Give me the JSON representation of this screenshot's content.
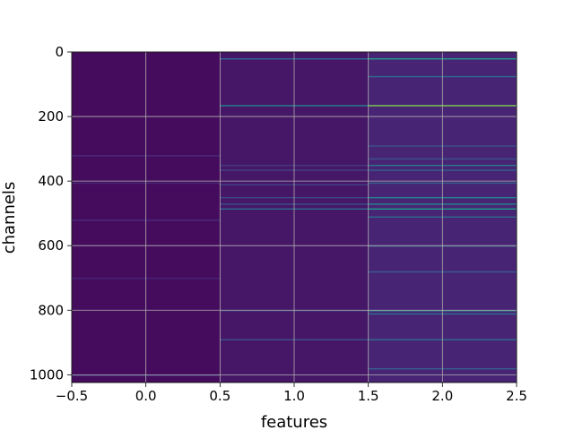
{
  "chart_data": {
    "type": "heatmap",
    "title": "",
    "xlabel": "features",
    "ylabel": "channels",
    "xlim": [
      -0.5,
      2.5
    ],
    "ylim": [
      1024,
      0
    ],
    "y_inverted": true,
    "grid": true,
    "colormap": "viridis",
    "x_ticks": [
      -0.5,
      0.0,
      0.5,
      1.0,
      1.5,
      2.0,
      2.5
    ],
    "x_tick_labels": [
      "−0.5",
      "0.0",
      "0.5",
      "1.0",
      "1.5",
      "2.0",
      "2.5"
    ],
    "y_ticks": [
      0,
      200,
      400,
      600,
      800,
      1000
    ],
    "y_tick_labels": [
      "0",
      "200",
      "400",
      "600",
      "800",
      "1000"
    ],
    "columns": [
      {
        "feature": 0,
        "base_value": 0.03,
        "highlights": [
          {
            "channel": 320,
            "value": 0.12
          },
          {
            "channel": 405,
            "value": 0.1
          },
          {
            "channel": 520,
            "value": 0.12
          },
          {
            "channel": 700,
            "value": 0.1
          },
          {
            "channel": 1000,
            "value": 0.2
          }
        ]
      },
      {
        "feature": 1,
        "base_value": 0.06,
        "highlights": [
          {
            "channel": 20,
            "value": 0.35
          },
          {
            "channel": 165,
            "value": 0.45
          },
          {
            "channel": 350,
            "value": 0.18
          },
          {
            "channel": 365,
            "value": 0.2
          },
          {
            "channel": 410,
            "value": 0.2
          },
          {
            "channel": 450,
            "value": 0.22
          },
          {
            "channel": 470,
            "value": 0.25
          },
          {
            "channel": 485,
            "value": 0.35
          },
          {
            "channel": 800,
            "value": 0.2
          },
          {
            "channel": 890,
            "value": 0.25
          }
        ]
      },
      {
        "feature": 2,
        "base_value": 0.1,
        "highlights": [
          {
            "channel": 20,
            "value": 0.55
          },
          {
            "channel": 75,
            "value": 0.35
          },
          {
            "channel": 165,
            "value": 0.8
          },
          {
            "channel": 290,
            "value": 0.25
          },
          {
            "channel": 330,
            "value": 0.25
          },
          {
            "channel": 350,
            "value": 0.4
          },
          {
            "channel": 365,
            "value": 0.3
          },
          {
            "channel": 405,
            "value": 0.3
          },
          {
            "channel": 450,
            "value": 0.45
          },
          {
            "channel": 470,
            "value": 0.45
          },
          {
            "channel": 485,
            "value": 0.55
          },
          {
            "channel": 510,
            "value": 0.35
          },
          {
            "channel": 600,
            "value": 0.3
          },
          {
            "channel": 680,
            "value": 0.3
          },
          {
            "channel": 800,
            "value": 0.45
          },
          {
            "channel": 810,
            "value": 0.35
          },
          {
            "channel": 890,
            "value": 0.35
          },
          {
            "channel": 980,
            "value": 0.3
          }
        ]
      }
    ]
  }
}
